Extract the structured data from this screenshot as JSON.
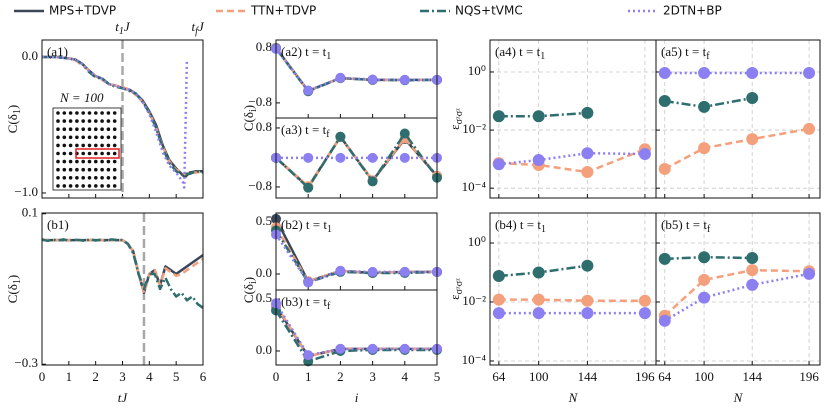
{
  "legend": [
    {
      "name": "MPS+TDVP",
      "color": "#3b4758",
      "style": "solid"
    },
    {
      "name": "TTN+TDVP",
      "color": "#f5a07c",
      "style": "dashed"
    },
    {
      "name": "NQS+tVMC",
      "color": "#2f6e6e",
      "style": "dashdot"
    },
    {
      "name": "2DTN+BP",
      "color": "#8b7ff2",
      "style": "dotted"
    }
  ],
  "chart_data": [
    {
      "type": "line",
      "panel_label": [
        "(a1)"
      ],
      "ylabel": [
        "C(δ",
        "1",
        ")"
      ],
      "annotations": [
        {
          "x": 3,
          "text": [
            "t",
            "1",
            "J"
          ]
        },
        {
          "x": 5.8,
          "text": [
            "t",
            "f",
            "J"
          ]
        }
      ],
      "vlines": [
        3
      ],
      "inset_label": "N = 100",
      "x": [
        0,
        0.25,
        0.5,
        0.75,
        1,
        1.25,
        1.5,
        1.75,
        2,
        2.25,
        2.5,
        2.75,
        3,
        3.25,
        3.5,
        3.75,
        4,
        4.25,
        4.5,
        4.75,
        5,
        5.25,
        5.3,
        5.35,
        5.4,
        5.5,
        5.75,
        6
      ],
      "series": [
        {
          "values": [
            0,
            0,
            0,
            -0.005,
            -0.01,
            -0.02,
            -0.05,
            -0.1,
            -0.14,
            -0.16,
            -0.2,
            -0.21,
            -0.23,
            -0.24,
            -0.27,
            -0.32,
            -0.4,
            -0.5,
            -0.65,
            -0.76,
            -0.82,
            -0.87,
            -0.88,
            -0.88,
            -0.87,
            -0.85,
            -0.84,
            -0.84
          ]
        },
        {
          "values": [
            0,
            0,
            0,
            -0.005,
            -0.01,
            -0.025,
            -0.06,
            -0.1,
            -0.14,
            -0.17,
            -0.2,
            -0.21,
            -0.22,
            -0.24,
            -0.28,
            -0.33,
            -0.41,
            -0.52,
            -0.66,
            -0.77,
            -0.83,
            -0.85,
            -0.86,
            -0.86,
            -0.86,
            -0.85,
            -0.85,
            -0.84
          ]
        },
        {
          "values": [
            0,
            0,
            0,
            -0.005,
            -0.012,
            -0.02,
            -0.05,
            -0.11,
            -0.15,
            -0.16,
            -0.2,
            -0.22,
            -0.23,
            -0.25,
            -0.27,
            -0.33,
            -0.41,
            -0.52,
            -0.67,
            -0.78,
            -0.84,
            -0.87,
            -0.87,
            -0.86,
            -0.86,
            -0.86,
            -0.84,
            -0.85
          ]
        },
        {
          "values": [
            0,
            0,
            0,
            -0.005,
            -0.01,
            -0.02,
            -0.05,
            -0.1,
            -0.14,
            -0.16,
            -0.2,
            -0.21,
            -0.23,
            -0.24,
            -0.27,
            -0.33,
            -0.42,
            -0.55,
            -0.7,
            -0.8,
            -0.85,
            -0.92,
            -0.96,
            -0.5,
            -0.02,
            null,
            null,
            null
          ]
        }
      ],
      "xlim": [
        0,
        6
      ],
      "xticks": [
        0,
        1,
        2,
        3,
        4,
        5,
        6
      ],
      "show_xtick_labels": false,
      "ylim": [
        -1.037,
        0.125
      ],
      "yticks": [
        {
          "value": 0,
          "label": "0.0"
        },
        {
          "value": -1,
          "label": "−1.0"
        }
      ],
      "show_ytick_labels": true,
      "log_y": false,
      "grid": false,
      "markers": false
    },
    {
      "type": "line",
      "panel_label": [
        "(a2) t = t",
        "1"
      ],
      "ylabel": [
        "C(δ",
        "i",
        ")"
      ],
      "x": [
        0,
        1,
        2,
        3,
        4,
        5
      ],
      "series": [
        {
          "values": [
            0.8,
            -0.45,
            -0.08,
            -0.13,
            -0.13,
            -0.13
          ]
        },
        {
          "values": [
            0.79,
            -0.45,
            -0.08,
            -0.13,
            -0.13,
            -0.13
          ]
        },
        {
          "values": [
            0.78,
            -0.46,
            -0.08,
            -0.13,
            -0.14,
            -0.13
          ]
        },
        {
          "values": [
            0.77,
            -0.44,
            -0.07,
            -0.12,
            -0.13,
            -0.13
          ]
        }
      ],
      "xlim": [
        0,
        5
      ],
      "xticks": [
        0,
        1,
        2,
        3,
        4,
        5
      ],
      "show_xtick_labels": false,
      "ylim": [
        -1.24,
        1.03
      ],
      "yticks": [
        0.8,
        {
          "value": -0.8,
          "label": "−0.8"
        }
      ],
      "show_ytick_labels": true,
      "log_y": false,
      "grid": false,
      "markers": true
    },
    {
      "type": "line",
      "panel_label": [
        "(a3)  t = t",
        "f"
      ],
      "x": [
        0,
        1,
        2,
        3,
        4,
        5
      ],
      "series": [
        {
          "values": [
            -0.01,
            -0.8,
            0.56,
            -0.63,
            0.5,
            -0.5
          ]
        },
        {
          "values": [
            -0.01,
            -0.78,
            0.55,
            -0.62,
            0.52,
            -0.5
          ]
        },
        {
          "values": [
            -0.01,
            -0.82,
            0.56,
            -0.65,
            0.65,
            -0.55
          ]
        },
        {
          "values": [
            -0.01,
            -0.01,
            -0.01,
            -0.01,
            -0.01,
            -0.01
          ]
        }
      ],
      "xlim": [
        0,
        5
      ],
      "xticks": [
        0,
        1,
        2,
        3,
        4,
        5
      ],
      "show_xtick_labels": false,
      "ylim": [
        -1.1,
        1.07
      ],
      "yticks": [
        0.8,
        {
          "value": -0.8,
          "label": "−0.8"
        }
      ],
      "show_ytick_labels": true,
      "log_y": false,
      "grid": false,
      "markers": true
    },
    {
      "type": "line",
      "panel_label": [
        "(a4) t = t",
        "1"
      ],
      "ylabel": [
        "ε",
        "σᶻσᶻ"
      ],
      "x": [
        64,
        100,
        144,
        196
      ],
      "series": [
        null,
        {
          "values": [
            0.00073,
            0.00063,
            0.00036,
            0.0022
          ]
        },
        {
          "values": [
            0.03,
            0.03,
            0.039,
            null
          ]
        },
        {
          "values": [
            0.00067,
            0.00093,
            0.0016,
            0.0015
          ]
        }
      ],
      "xlim": [
        56,
        206
      ],
      "xticks": [
        64,
        100,
        144,
        196
      ],
      "show_xtick_labels": false,
      "ylim": [
        4.6e-05,
        12.6
      ],
      "yticks": [
        {
          "value": 1,
          "label": "10⁰"
        },
        {
          "value": 0.01,
          "label": "10⁻²"
        },
        {
          "value": 0.0001,
          "label": "10⁻⁴"
        }
      ],
      "show_ytick_labels": true,
      "log_y": true,
      "grid": true,
      "markers": true
    },
    {
      "type": "line",
      "panel_label": [
        "(a5) t = t",
        "f"
      ],
      "x": [
        64,
        100,
        144,
        196
      ],
      "series": [
        null,
        {
          "values": [
            0.00046,
            0.0024,
            0.0049,
            0.011
          ]
        },
        {
          "values": [
            0.1,
            0.063,
            0.127,
            null
          ]
        },
        {
          "values": [
            0.92,
            0.92,
            0.92,
            0.92
          ]
        }
      ],
      "xlim": [
        56,
        206
      ],
      "xticks": [
        64,
        100,
        144,
        196
      ],
      "show_xtick_labels": false,
      "ylim": [
        4.6e-05,
        12.6
      ],
      "yticks": [
        1,
        0.01,
        0.0001
      ],
      "show_ytick_labels": false,
      "log_y": true,
      "grid": true,
      "markers": true
    },
    {
      "type": "line",
      "panel_label": [
        "(b1)"
      ],
      "ylabel": [
        "C(δ",
        "1",
        ")"
      ],
      "xlabel": "tJ",
      "vlines": [
        3.8
      ],
      "x": [
        0,
        0.2,
        0.4,
        0.6,
        0.8,
        1,
        1.2,
        1.4,
        1.6,
        1.8,
        2,
        2.2,
        2.4,
        2.6,
        2.8,
        3,
        3.2,
        3.4,
        3.6,
        3.8,
        4,
        4.2,
        4.4,
        4.6,
        4.8,
        5,
        5.2,
        5.4,
        5.6,
        5.8,
        6
      ],
      "series": [
        {
          "values": [
            0.03,
            0.03,
            0.03,
            0.03,
            0.03,
            0.03,
            0.03,
            0.03,
            0.03,
            0.03,
            0.03,
            0.03,
            0.03,
            0.03,
            0.03,
            0.03,
            0.02,
            0,
            -0.06,
            -0.11,
            -0.06,
            -0.05,
            -0.09,
            -0.04,
            -0.05,
            -0.06,
            -0.05,
            -0.04,
            -0.03,
            -0.02,
            -0.01
          ]
        },
        {
          "values": [
            0.03,
            0.03,
            0.03,
            0.03,
            0.03,
            0.03,
            0.03,
            0.03,
            0.03,
            0.03,
            0.03,
            0.03,
            0.03,
            0.03,
            0.03,
            0.03,
            0.02,
            0,
            -0.06,
            -0.11,
            -0.06,
            -0.05,
            -0.09,
            -0.045,
            -0.055,
            -0.065,
            -0.06,
            -0.05,
            -0.04,
            -0.03,
            -0.02
          ]
        },
        {
          "values": [
            0.032,
            0.028,
            0.031,
            0.029,
            0.032,
            0.028,
            0.031,
            0.03,
            0.028,
            0.032,
            0.029,
            0.031,
            0.028,
            0.032,
            0.03,
            0.03,
            0.02,
            -0.005,
            -0.06,
            -0.1,
            -0.06,
            -0.06,
            -0.1,
            -0.07,
            -0.1,
            -0.12,
            -0.11,
            -0.13,
            -0.12,
            -0.14,
            -0.15
          ]
        }
      ],
      "xlim": [
        0,
        6
      ],
      "xticks": [
        0,
        1,
        2,
        3,
        4,
        5,
        6
      ],
      "show_xtick_labels": true,
      "ylim": [
        -0.302,
        0.102
      ],
      "yticks": [
        0.1,
        {
          "value": -0.3,
          "label": "−0.3"
        }
      ],
      "show_ytick_labels": true,
      "log_y": false,
      "grid": false,
      "markers": false
    },
    {
      "type": "line",
      "panel_label": [
        "(b2) t = t",
        "1"
      ],
      "ylabel": [
        "C(δ",
        "i",
        ")"
      ],
      "x": [
        0,
        1,
        2,
        3,
        4,
        5
      ],
      "series": [
        {
          "values": [
            0.53,
            -0.07,
            0.03,
            0.01,
            0.02,
            0.02
          ]
        },
        {
          "values": [
            0.45,
            -0.07,
            0.03,
            0.01,
            0.02,
            0.02
          ]
        },
        {
          "values": [
            0.42,
            -0.08,
            0.02,
            0.01,
            0.01,
            0.02
          ]
        },
        {
          "values": [
            0.38,
            -0.08,
            0.03,
            0.02,
            0.02,
            0.02
          ]
        }
      ],
      "xlim": [
        0,
        5
      ],
      "xticks": [
        0,
        1,
        2,
        3,
        4,
        5
      ],
      "show_xtick_labels": false,
      "ylim": [
        -0.154,
        0.587
      ],
      "yticks": [
        0.5,
        {
          "value": 0,
          "label": "0.0"
        }
      ],
      "show_ytick_labels": true,
      "log_y": false,
      "grid": false,
      "markers": true
    },
    {
      "type": "line",
      "panel_label": [
        "(b3) t = t",
        "f"
      ],
      "xlabel": "i",
      "x": [
        0,
        1,
        2,
        3,
        4,
        5
      ],
      "series": [
        {
          "values": [
            0.43,
            -0.05,
            0.02,
            0.02,
            0.02,
            0.02
          ]
        },
        {
          "values": [
            0.44,
            -0.05,
            0.02,
            0.02,
            0.02,
            0.02
          ]
        },
        {
          "values": [
            0.39,
            -0.1,
            0,
            0.01,
            0.01,
            0.01
          ]
        },
        {
          "values": [
            0.46,
            -0.04,
            0.02,
            0.02,
            0.02,
            0.02
          ]
        }
      ],
      "xlim": [
        0,
        5
      ],
      "xticks": [
        0,
        1,
        2,
        3,
        4,
        5
      ],
      "show_xtick_labels": true,
      "ylim": [
        -0.135,
        0.587
      ],
      "yticks": [
        0.5,
        {
          "value": 0,
          "label": "0.0"
        }
      ],
      "show_ytick_labels": true,
      "log_y": false,
      "grid": false,
      "markers": true
    },
    {
      "type": "line",
      "panel_label": [
        "(b4) t = t",
        "1"
      ],
      "ylabel": [
        "ε",
        "σᶻσᶻ"
      ],
      "xlabel": "N",
      "x": [
        64,
        100,
        144,
        196
      ],
      "series": [
        null,
        {
          "values": [
            0.012,
            0.012,
            0.011,
            0.011
          ]
        },
        {
          "values": [
            0.076,
            0.1,
            0.17,
            null
          ]
        },
        {
          "values": [
            0.0042,
            0.0042,
            0.0042,
            0.0042
          ]
        }
      ],
      "xlim": [
        56,
        206
      ],
      "xticks": [
        64,
        100,
        144,
        196
      ],
      "show_xtick_labels": true,
      "ylim": [
        7.3e-05,
        10.4
      ],
      "yticks": [
        {
          "value": 1,
          "label": "10⁰"
        },
        {
          "value": 0.01,
          "label": "10⁻²"
        },
        {
          "value": 0.0001,
          "label": "10⁻⁴"
        }
      ],
      "show_ytick_labels": true,
      "log_y": true,
      "grid": true,
      "markers": true
    },
    {
      "type": "line",
      "panel_label": [
        "(b5) t = t",
        "f"
      ],
      "xlabel": "N",
      "x": [
        64,
        100,
        144,
        196
      ],
      "series": [
        null,
        {
          "values": [
            0.0034,
            0.056,
            0.12,
            0.11
          ]
        },
        {
          "values": [
            0.29,
            0.33,
            0.31,
            null
          ]
        },
        {
          "values": [
            0.0023,
            0.014,
            0.038,
            0.09
          ]
        }
      ],
      "xlim": [
        56,
        206
      ],
      "xticks": [
        64,
        100,
        144,
        196
      ],
      "show_xtick_labels": true,
      "ylim": [
        7.3e-05,
        10.4
      ],
      "yticks": [
        1,
        0.01,
        0.0001
      ],
      "show_ytick_labels": false,
      "log_y": true,
      "grid": true,
      "markers": true
    }
  ]
}
